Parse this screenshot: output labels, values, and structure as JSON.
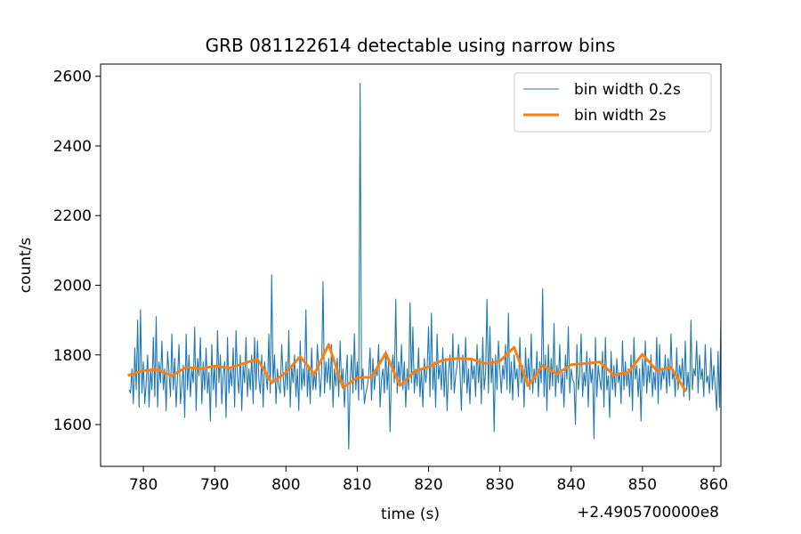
{
  "chart_data": {
    "type": "line",
    "title": "GRB 081122614 detectable using narrow bins",
    "xlabel": "time (s)",
    "ylabel": "count/s",
    "x_offset_label": "+2.4905700000e8",
    "xlim": [
      774,
      861
    ],
    "ylim": [
      1480,
      2635
    ],
    "xticks": [
      780,
      790,
      800,
      810,
      820,
      830,
      840,
      850,
      860
    ],
    "yticks": [
      1600,
      1800,
      2000,
      2200,
      2400,
      2600
    ],
    "grid": false,
    "legend_position": "top-right",
    "colors": {
      "narrow": "#1f77b4",
      "wide": "#ff7f0e"
    },
    "series": [
      {
        "name": "bin width 0.2s",
        "x_start": 778.0,
        "x_step": 0.2,
        "values": [
          1700,
          1690,
          1760,
          1660,
          1820,
          1700,
          1900,
          1650,
          1930,
          1690,
          1780,
          1660,
          1720,
          1800,
          1650,
          1760,
          1700,
          1850,
          1680,
          1910,
          1650,
          1780,
          1720,
          1840,
          1700,
          1760,
          1640,
          1810,
          1750,
          1680,
          1860,
          1700,
          1790,
          1650,
          1740,
          1830,
          1660,
          1710,
          1770,
          1620,
          1860,
          1700,
          1800,
          1680,
          1760,
          1720,
          1880,
          1640,
          1790,
          1740,
          1850,
          1660,
          1780,
          1700,
          1820,
          1690,
          1750,
          1610,
          1830,
          1700,
          1770,
          1650,
          1870,
          1720,
          1800,
          1660,
          1740,
          1780,
          1620,
          1850,
          1690,
          1760,
          1710,
          1820,
          1650,
          1870,
          1740,
          1690,
          1800,
          1640,
          1770,
          1720,
          1850,
          1680,
          1760,
          1700,
          1800,
          1660,
          1850,
          1700,
          1840,
          1730,
          1690,
          1800,
          1650,
          1780,
          1740,
          1700,
          1860,
          1690,
          2030,
          1720,
          1800,
          1660,
          1760,
          1710,
          1690,
          1830,
          1740,
          1680,
          1780,
          1700,
          1870,
          1650,
          1770,
          1720,
          1800,
          1680,
          1760,
          1640,
          1840,
          1700,
          1760,
          1710,
          1930,
          1680,
          1770,
          1660,
          1820,
          1700,
          1750,
          1700,
          1830,
          1760,
          1680,
          1750,
          2010,
          1690,
          1780,
          1720,
          1790,
          1700,
          1830,
          1650,
          1760,
          1710,
          1790,
          1680,
          1840,
          1710,
          1760,
          1650,
          1740,
          1800,
          1530,
          1720,
          1800,
          1690,
          1860,
          1700,
          1780,
          1670,
          2580,
          1700,
          1760,
          1660,
          1690,
          1710,
          1740,
          1820,
          1670,
          1790,
          1700,
          1760,
          1740,
          1830,
          1650,
          1730,
          1760,
          1690,
          1810,
          1700,
          1780,
          1580,
          1750,
          1800,
          1720,
          1960,
          1690,
          1780,
          1720,
          1830,
          1700,
          1780,
          1650,
          1760,
          1700,
          1950,
          1720,
          1880,
          1690,
          1760,
          1710,
          1820,
          1680,
          1760,
          1650,
          1790,
          1720,
          1760,
          1880,
          1680,
          1920,
          1700,
          1780,
          1650,
          1860,
          1730,
          1770,
          1700,
          1820,
          1680,
          1790,
          1640,
          1750,
          1800,
          1700,
          1860,
          1690,
          1740,
          1770,
          1830,
          1760,
          1640,
          1800,
          1720,
          1850,
          1690,
          1760,
          1660,
          1790,
          1730,
          1770,
          1680,
          1830,
          1720,
          1790,
          1660,
          1850,
          1700,
          1750,
          1960,
          1690,
          1880,
          1720,
          1790,
          1580,
          1800,
          1700,
          1840,
          1760,
          1690,
          1770,
          1730,
          1830,
          1700,
          1920,
          1690,
          1780,
          1670,
          1800,
          1730,
          1760,
          1680,
          1850,
          1720,
          1770,
          1650,
          1820,
          1710,
          1790,
          1700,
          1860,
          1690,
          1760,
          1720,
          1810,
          1680,
          1780,
          1720,
          1990,
          1680,
          1800,
          1640,
          1830,
          1700,
          1790,
          1710,
          1890,
          1680,
          1770,
          1720,
          1830,
          1690,
          1750,
          1650,
          1800,
          1730,
          1880,
          1690,
          1760,
          1730,
          1720,
          1600,
          1830,
          1700,
          1740,
          1860,
          1680,
          1750,
          1710,
          1810,
          1650,
          1790,
          1720,
          1760,
          1560,
          1850,
          1680,
          1770,
          1730,
          1700,
          1810,
          1650,
          1850,
          1700,
          1740,
          1620,
          1810,
          1700,
          1770,
          1680,
          1790,
          1720,
          1750,
          1660,
          1840,
          1700,
          1780,
          1710,
          1760,
          1680,
          1800,
          1640,
          1850,
          1730,
          1770,
          1680,
          1760,
          1610,
          1790,
          1710,
          1840,
          1690,
          1770,
          1720,
          1800,
          1680,
          1750,
          1700,
          1850,
          1660,
          1830,
          1700,
          1760,
          1730,
          1800,
          1690,
          1790,
          1710,
          1860,
          1730,
          1750,
          1680,
          1820,
          1700,
          1770,
          1730,
          1790,
          1680,
          1840,
          1700,
          1750,
          1670,
          1900,
          1700,
          1760,
          1740,
          1840,
          1690,
          1800,
          1730,
          1760,
          1680,
          1830,
          1720,
          1740,
          1690,
          1820,
          1700,
          1770,
          1710,
          1640,
          1810,
          1650,
          1900,
          1610,
          1720
        ]
      },
      {
        "name": "bin width 2s",
        "x": [
          778,
          780,
          782,
          784,
          786,
          788,
          790,
          792,
          794,
          796,
          798,
          800,
          802,
          804,
          806,
          808,
          810,
          812,
          814,
          816,
          818,
          820,
          822,
          824,
          826,
          828,
          830,
          832,
          834,
          836,
          838,
          840,
          842,
          844,
          846,
          848,
          850,
          852,
          854,
          856
        ],
        "values": [
          1742,
          1755,
          1758,
          1740,
          1765,
          1760,
          1768,
          1762,
          1775,
          1788,
          1720,
          1750,
          1795,
          1745,
          1830,
          1706,
          1735,
          1736,
          1805,
          1712,
          1752,
          1766,
          1785,
          1790,
          1788,
          1775,
          1782,
          1822,
          1712,
          1770,
          1745,
          1772,
          1775,
          1780,
          1742,
          1750,
          1802,
          1755,
          1765,
          1698
        ]
      }
    ]
  }
}
